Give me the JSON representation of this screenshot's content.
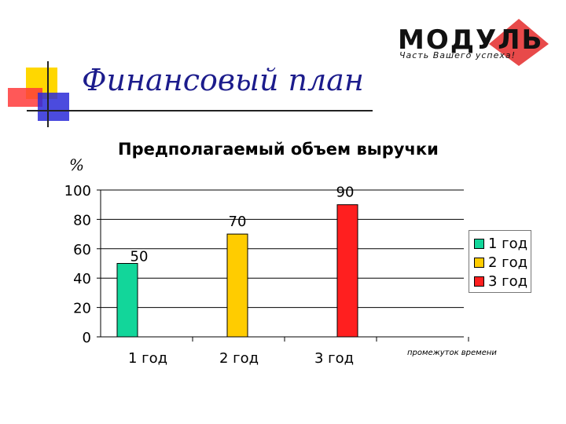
{
  "slide": {
    "title": "Финансовый план"
  },
  "logo": {
    "name": "МОДУЛЬ",
    "tagline": "Часть Вашего успеха!",
    "color": "#e84a4a"
  },
  "chart_data": {
    "type": "bar",
    "title": "Предполагаемый объем выручки",
    "ylabel": "%",
    "xlabel": "промежуток времени",
    "categories": [
      "1 год",
      "2 год",
      "3 год"
    ],
    "values": [
      50,
      70,
      90
    ],
    "colors": [
      "#12d69a",
      "#ffcc00",
      "#ff1f1f"
    ],
    "ylim": [
      0,
      100
    ],
    "yticks": [
      0,
      20,
      40,
      60,
      80,
      100
    ],
    "grid": true,
    "legend": {
      "position": "right",
      "entries": [
        "1 год",
        "2 год",
        "3 год"
      ]
    }
  }
}
